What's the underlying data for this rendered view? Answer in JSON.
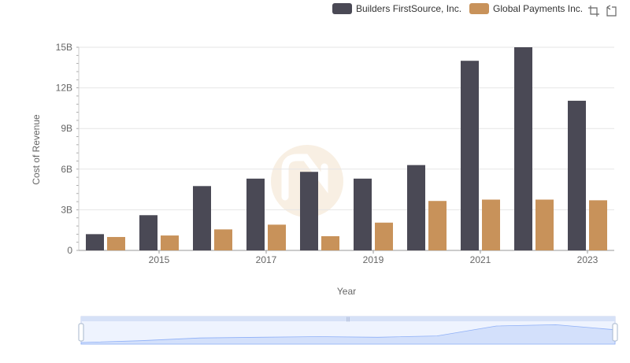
{
  "colors": {
    "series1": "#4a4955",
    "series2": "#c8925a",
    "grid": "#e6e6e6",
    "axis_text": "#666666",
    "slider_fill": "#d3e0fb",
    "slider_border": "#c7d2ee",
    "slider_line": "#8fb0f7"
  },
  "legend": {
    "items": [
      {
        "label": "Builders FirstSource, Inc.",
        "color": "#4a4955"
      },
      {
        "label": "Global Payments Inc.",
        "color": "#c8925a"
      }
    ]
  },
  "toolbox": {
    "icons": [
      "zoom-icon",
      "restore-icon"
    ]
  },
  "chart_data": {
    "type": "bar",
    "title": "",
    "xlabel": "Year",
    "ylabel": "Cost of Revenue",
    "x": [
      2014,
      2015,
      2016,
      2017,
      2018,
      2019,
      2020,
      2021,
      2022,
      2023
    ],
    "x_tick_labels": [
      "2015",
      "2017",
      "2019",
      "2021",
      "2023"
    ],
    "x_tick_years": [
      2015,
      2017,
      2019,
      2021,
      2023
    ],
    "y_tick_labels": [
      "0",
      "3B",
      "6B",
      "9B",
      "12B",
      "15B"
    ],
    "ylim": [
      0,
      15000000000
    ],
    "grid": true,
    "legend_position": "top-right",
    "series": [
      {
        "name": "Builders FirstSource, Inc.",
        "values": [
          1200000000,
          2600000000,
          4750000000,
          5300000000,
          5800000000,
          5300000000,
          6300000000,
          14000000000,
          15000000000,
          11050000000
        ]
      },
      {
        "name": "Global Payments Inc.",
        "values": [
          990000000,
          1100000000,
          1550000000,
          1900000000,
          1050000000,
          2050000000,
          3650000000,
          3750000000,
          3750000000,
          3700000000
        ]
      }
    ]
  }
}
